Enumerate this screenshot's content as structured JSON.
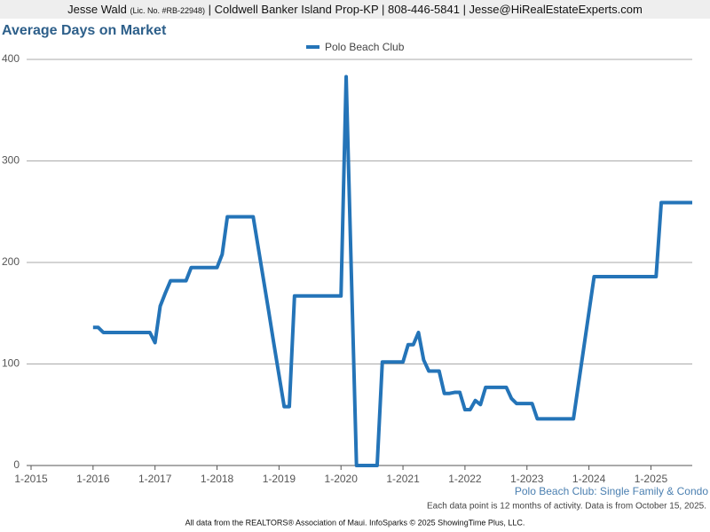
{
  "header": {
    "agent": "Jesse Wald",
    "license": "(Lic. No. #RB-22948)",
    "details": "| Coldwell Banker Island Prop-KP | 808-446-5841 | Jesse@HiRealEstateExperts.com"
  },
  "chart_data": {
    "type": "line",
    "title": "Average Days on Market",
    "subtitle": "Polo Beach Club: Single Family & Condo",
    "note": "Each data point is 12 months of activity. Data is from October 15, 2025.",
    "footer": "All data from the REALTORS® Association of Maui. InfoSparks © 2025 ShowingTime Plus, LLC.",
    "x": [
      "2016-01",
      "2016-02",
      "2016-03",
      "2016-04",
      "2016-05",
      "2016-06",
      "2016-07",
      "2016-08",
      "2016-09",
      "2016-10",
      "2016-11",
      "2016-12",
      "2017-01",
      "2017-02",
      "2017-03",
      "2017-04",
      "2017-05",
      "2017-06",
      "2017-07",
      "2017-08",
      "2017-09",
      "2017-10",
      "2017-11",
      "2017-12",
      "2018-01",
      "2018-02",
      "2018-03",
      "2018-04",
      "2018-05",
      "2018-06",
      "2018-07",
      "2018-08",
      "2018-09",
      "2018-10",
      "2018-11",
      "2018-12",
      "2019-01",
      "2019-02",
      "2019-03",
      "2019-04",
      "2019-05",
      "2019-06",
      "2019-07",
      "2019-08",
      "2019-09",
      "2019-10",
      "2019-11",
      "2019-12",
      "2020-01",
      "2020-02",
      "2020-03",
      "2020-04",
      "2020-05",
      "2020-06",
      "2020-07",
      "2020-08",
      "2020-09",
      "2020-10",
      "2020-11",
      "2020-12",
      "2021-01",
      "2021-02",
      "2021-03",
      "2021-04",
      "2021-05",
      "2021-06",
      "2021-07",
      "2021-08",
      "2021-09",
      "2021-10",
      "2021-11",
      "2021-12",
      "2022-01",
      "2022-02",
      "2022-03",
      "2022-04",
      "2022-05",
      "2022-06",
      "2022-07",
      "2022-08",
      "2022-09",
      "2022-10",
      "2022-11",
      "2022-12",
      "2023-01",
      "2023-02",
      "2023-03",
      "2023-04",
      "2023-05",
      "2023-06",
      "2023-07",
      "2023-08",
      "2023-09",
      "2023-10",
      "2023-11",
      "2023-12",
      "2024-01",
      "2024-02",
      "2024-03",
      "2024-04",
      "2024-05",
      "2024-06",
      "2024-07",
      "2024-08",
      "2024-09",
      "2024-10",
      "2024-11",
      "2024-12",
      "2025-01",
      "2025-02",
      "2025-03",
      "2025-04",
      "2025-05",
      "2025-06",
      "2025-07",
      "2025-08",
      "2025-09"
    ],
    "series": [
      {
        "name": "Polo Beach Club",
        "color": "#2474b8",
        "values": [
          136,
          136,
          131,
          131,
          131,
          131,
          131,
          131,
          131,
          131,
          131,
          131,
          121,
          157,
          170,
          182,
          182,
          182,
          182,
          195,
          195,
          195,
          195,
          195,
          195,
          208,
          245,
          245,
          245,
          245,
          245,
          245,
          214,
          183,
          152,
          120,
          89,
          58,
          58,
          167,
          167,
          167,
          167,
          167,
          167,
          167,
          167,
          167,
          167,
          383,
          190,
          0,
          0,
          0,
          0,
          0,
          102,
          102,
          102,
          102,
          102,
          119,
          119,
          131,
          104,
          93,
          93,
          93,
          71,
          71,
          72,
          72,
          55,
          55,
          64,
          60,
          77,
          77,
          77,
          77,
          77,
          66,
          61,
          61,
          61,
          61,
          46,
          46,
          46,
          46,
          46,
          46,
          46,
          46,
          81,
          116,
          151,
          186,
          186,
          186,
          186,
          186,
          186,
          186,
          186,
          186,
          186,
          186,
          186,
          186,
          259,
          259,
          259,
          259,
          259,
          259,
          259
        ]
      }
    ],
    "xlim": [
      "2015-01",
      "2025-09"
    ],
    "xticks": [
      {
        "value": "2015-01",
        "label": "1-2015"
      },
      {
        "value": "2016-01",
        "label": "1-2016"
      },
      {
        "value": "2017-01",
        "label": "1-2017"
      },
      {
        "value": "2018-01",
        "label": "1-2018"
      },
      {
        "value": "2019-01",
        "label": "1-2019"
      },
      {
        "value": "2020-01",
        "label": "1-2020"
      },
      {
        "value": "2021-01",
        "label": "1-2021"
      },
      {
        "value": "2022-01",
        "label": "1-2022"
      },
      {
        "value": "2023-01",
        "label": "1-2023"
      },
      {
        "value": "2024-01",
        "label": "1-2024"
      },
      {
        "value": "2025-01",
        "label": "1-2025"
      }
    ],
    "ylim": [
      0,
      400
    ],
    "yticks": [
      0,
      100,
      200,
      300,
      400
    ],
    "grid": true
  }
}
